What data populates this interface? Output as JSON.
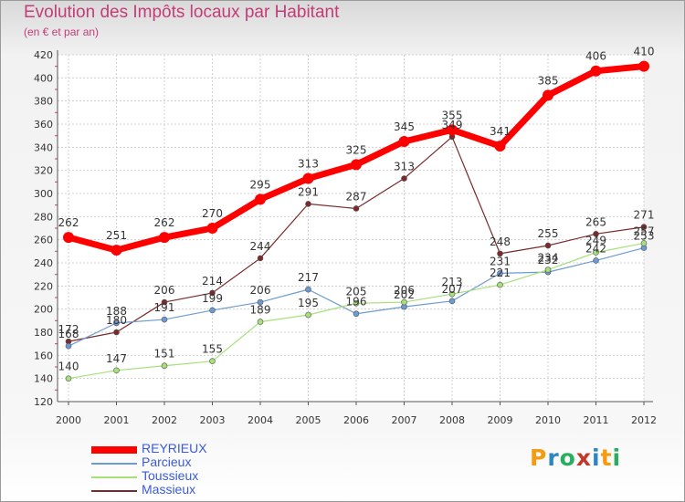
{
  "title": "Evolution des Impôts locaux par Habitant",
  "subtitle": "(en € et par an)",
  "logo": {
    "text": "Proxiti",
    "colors": [
      "#f39c12",
      "#2e86c1",
      "#27ae60",
      "#c0392b",
      "#2e86c1",
      "#f39c12",
      "#27ae60"
    ]
  },
  "chart_data": {
    "type": "line",
    "title": "Evolution des Impôts locaux par Habitant",
    "ylabel": "(en € et par an)",
    "xlabel": "",
    "ylim": [
      120,
      420
    ],
    "yticks": [
      120,
      140,
      160,
      180,
      200,
      220,
      240,
      260,
      280,
      300,
      320,
      340,
      360,
      380,
      400,
      420
    ],
    "grid": true,
    "legend_position": "bottom-left",
    "categories": [
      "2000",
      "2001",
      "2002",
      "2003",
      "2004",
      "2005",
      "2006",
      "2007",
      "2008",
      "2009",
      "2010",
      "2011",
      "2012"
    ],
    "series": [
      {
        "name": "REYRIEUX",
        "color": "#ff0000",
        "values": [
          262,
          251,
          262,
          270,
          295,
          313,
          325,
          345,
          355,
          341,
          385,
          406,
          410
        ]
      },
      {
        "name": "Parcieux",
        "color": "#6c9bd2",
        "values": [
          168,
          188,
          191,
          199,
          206,
          217,
          196,
          202,
          207,
          231,
          232,
          242,
          253
        ]
      },
      {
        "name": "Toussieux",
        "color": "#a6e07a",
        "values": [
          140,
          147,
          151,
          155,
          189,
          195,
          205,
          206,
          213,
          221,
          234,
          249,
          257
        ]
      },
      {
        "name": "Massieux",
        "color": "#7a2a2a",
        "values": [
          172,
          180,
          206,
          214,
          244,
          291,
          287,
          313,
          349,
          248,
          255,
          265,
          271
        ]
      }
    ]
  }
}
